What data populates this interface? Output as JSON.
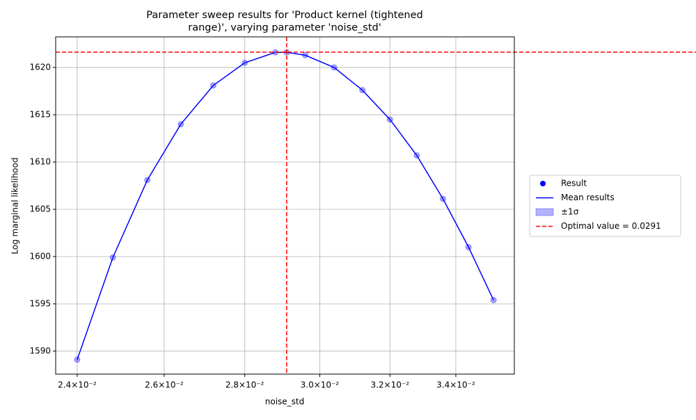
{
  "chart_data": {
    "type": "line",
    "title": [
      "Parameter sweep results for 'Product kernel (tightened",
      "range)', varying parameter 'noise_std'"
    ],
    "xlabel": "noise_std",
    "ylabel": "Log marginal likelihood",
    "x": [
      0.024,
      0.0248,
      0.0256,
      0.0264,
      0.0272,
      0.028,
      0.0288,
      0.0291,
      0.0296,
      0.0304,
      0.0312,
      0.032,
      0.0328,
      0.0336,
      0.0344,
      0.0352
    ],
    "series": [
      {
        "name": "Result",
        "color": "#0000ff",
        "values": [
          1589.1,
          1599.9,
          1608.1,
          1614.0,
          1618.1,
          1620.5,
          1621.6,
          1621.6,
          1621.3,
          1620.0,
          1617.6,
          1614.5,
          1610.7,
          1606.1,
          1601.0,
          1595.4
        ]
      },
      {
        "name": "Mean results",
        "color": "#0000ff",
        "values": [
          1589.1,
          1599.9,
          1608.1,
          1614.0,
          1618.1,
          1620.5,
          1621.6,
          1621.6,
          1621.3,
          1620.0,
          1617.6,
          1614.5,
          1610.7,
          1606.1,
          1601.0,
          1595.4
        ]
      }
    ],
    "band": {
      "name": "±1σ",
      "color": "#0000ff"
    },
    "optimal": {
      "x": 0.0291,
      "y": 1621.62,
      "label": "Optimal value = 0.0291",
      "color": "#ff0000"
    },
    "xscale": "log",
    "xlim": [
      0.02353,
      0.03588
    ],
    "ylim": [
      1587.57,
      1623.24
    ],
    "xticks": [
      {
        "value": 0.024,
        "label": "2.4×10⁻²"
      },
      {
        "value": 0.026,
        "label": "2.6×10⁻²"
      },
      {
        "value": 0.028,
        "label": "2.8×10⁻²"
      },
      {
        "value": 0.03,
        "label": "3.0×10⁻²"
      },
      {
        "value": 0.032,
        "label": "3.2×10⁻²"
      },
      {
        "value": 0.034,
        "label": "3.4×10⁻²"
      }
    ],
    "yticks": [
      1590,
      1595,
      1600,
      1605,
      1610,
      1615,
      1620
    ],
    "grid": true,
    "legend": "outside-right"
  }
}
